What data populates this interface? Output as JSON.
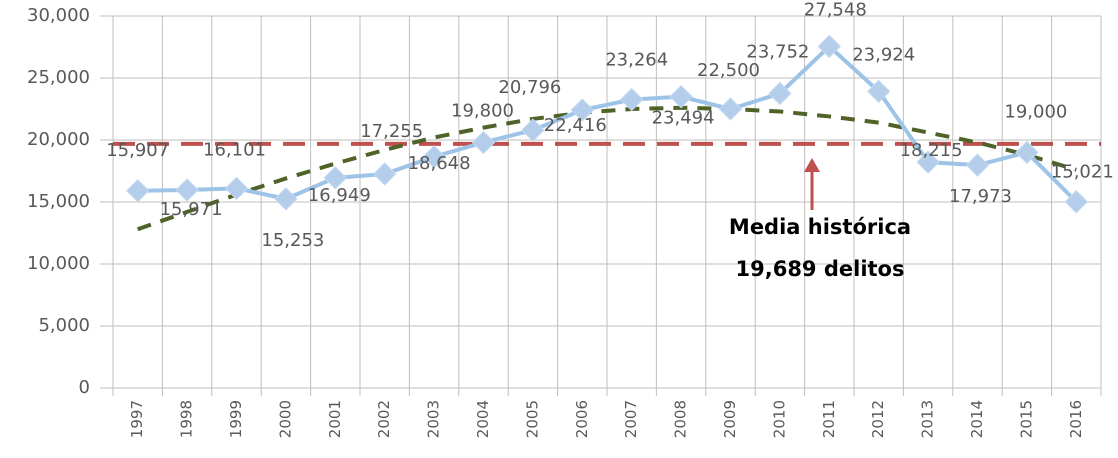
{
  "chart_data": {
    "type": "line",
    "categories": [
      "1997",
      "1998",
      "1999",
      "2000",
      "2001",
      "2002",
      "2003",
      "2004",
      "2005",
      "2006",
      "2007",
      "2008",
      "2009",
      "2010",
      "2011",
      "2012",
      "2013",
      "2014",
      "2015",
      "2016"
    ],
    "series": [
      {
        "name": null,
        "color": "#9dc3e6",
        "values": [
          15907,
          15971,
          16101,
          15253,
          16949,
          17255,
          18648,
          19800,
          20796,
          22416,
          23264,
          23494,
          22500,
          23752,
          27548,
          23924,
          18215,
          17973,
          19000,
          15021
        ],
        "value_labels": [
          "15,907",
          "15,971",
          "16,101",
          "15,253",
          "16,949",
          "17,255",
          "18,648",
          "19,800",
          "20,796",
          "22,416",
          "23,264",
          "23,494",
          "22,500",
          "23,752",
          "27,548",
          "23,924",
          "18,215",
          "17,973",
          "19,000",
          "15,021"
        ]
      }
    ],
    "trendline": {
      "color": "#4f6228",
      "values": [
        12800,
        14200,
        15600,
        16900,
        18100,
        19200,
        20200,
        21000,
        21700,
        22200,
        22500,
        22600,
        22500,
        22300,
        21900,
        21400,
        20600,
        19800,
        18800,
        17600
      ]
    },
    "mean_line": {
      "value": 19689,
      "color": "#c0504d"
    },
    "annotation": [
      "Media histórica",
      "19,689 delitos"
    ],
    "ylim": [
      0,
      30000
    ],
    "yticks": [
      0,
      {
        "value": 5000,
        "label": "5,000"
      },
      {
        "value": 10000,
        "label": "10,000"
      },
      {
        "value": 15000,
        "label": "15,000"
      },
      {
        "value": 20000,
        "label": "20,000"
      },
      {
        "value": 25000,
        "label": "25,000"
      },
      {
        "value": 30000,
        "label": "30,000"
      }
    ],
    "grid": true
  }
}
